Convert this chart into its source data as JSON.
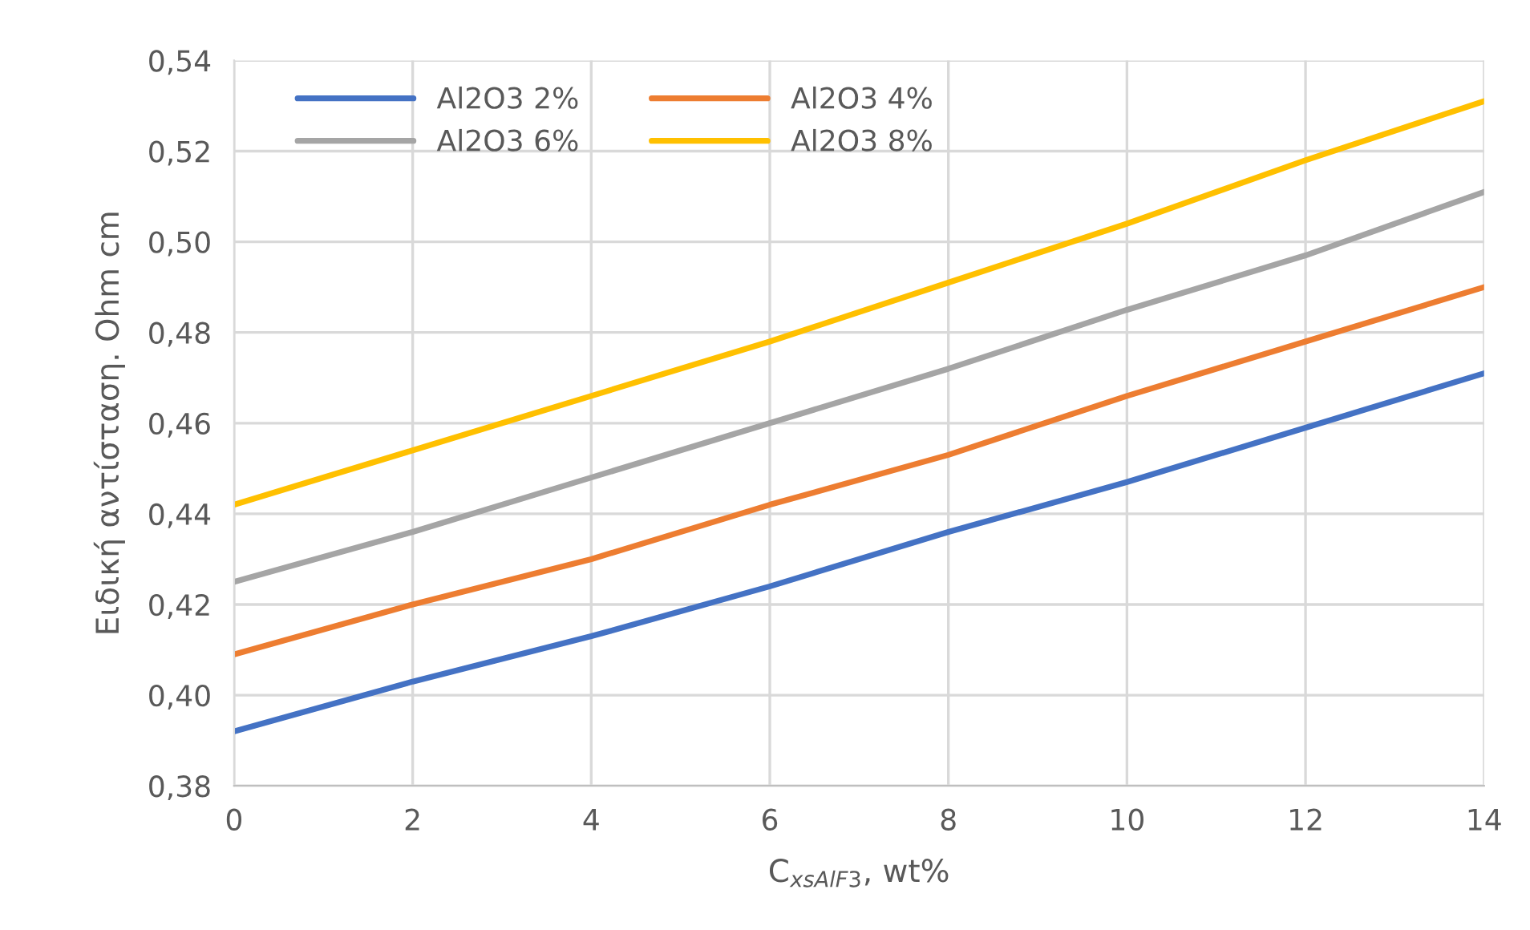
{
  "chart_data": {
    "type": "line",
    "xlabel": "C$_{xsAlF3}$, wt%",
    "ylabel": "Ειδική αντίσταση. Ohm cm",
    "x": [
      0,
      2,
      4,
      6,
      8,
      10,
      12,
      14
    ],
    "series": [
      {
        "name": "Al2O3 2%",
        "color": "#4472c4",
        "values": [
          0.392,
          0.403,
          0.413,
          0.424,
          0.436,
          0.447,
          0.459,
          0.471
        ]
      },
      {
        "name": "Al2O3 4%",
        "color": "#ed7d31",
        "values": [
          0.409,
          0.42,
          0.43,
          0.442,
          0.453,
          0.466,
          0.478,
          0.49
        ]
      },
      {
        "name": "Al2O3 6%",
        "color": "#a5a5a5",
        "values": [
          0.425,
          0.436,
          0.448,
          0.46,
          0.472,
          0.485,
          0.497,
          0.511
        ]
      },
      {
        "name": "Al2O3 8%",
        "color": "#ffc000",
        "values": [
          0.442,
          0.454,
          0.466,
          0.478,
          0.491,
          0.504,
          0.518,
          0.531
        ]
      }
    ],
    "xlim": [
      0,
      14
    ],
    "xticks": [
      0,
      2,
      4,
      6,
      8,
      10,
      12,
      14
    ],
    "ylim": [
      0.38,
      0.54
    ],
    "yticks": [
      {
        "value": 0.38,
        "label": "0,38"
      },
      {
        "value": 0.4,
        "label": "0,40"
      },
      {
        "value": 0.42,
        "label": "0,42"
      },
      {
        "value": 0.44,
        "label": "0,44"
      },
      {
        "value": 0.46,
        "label": "0,46"
      },
      {
        "value": 0.48,
        "label": "0,48"
      },
      {
        "value": 0.5,
        "label": "0,50"
      },
      {
        "value": 0.52,
        "label": "0,52"
      },
      {
        "value": 0.54,
        "label": "0,54"
      }
    ],
    "grid": true,
    "legend": "top left",
    "marker": "none",
    "line_style": "solid"
  }
}
